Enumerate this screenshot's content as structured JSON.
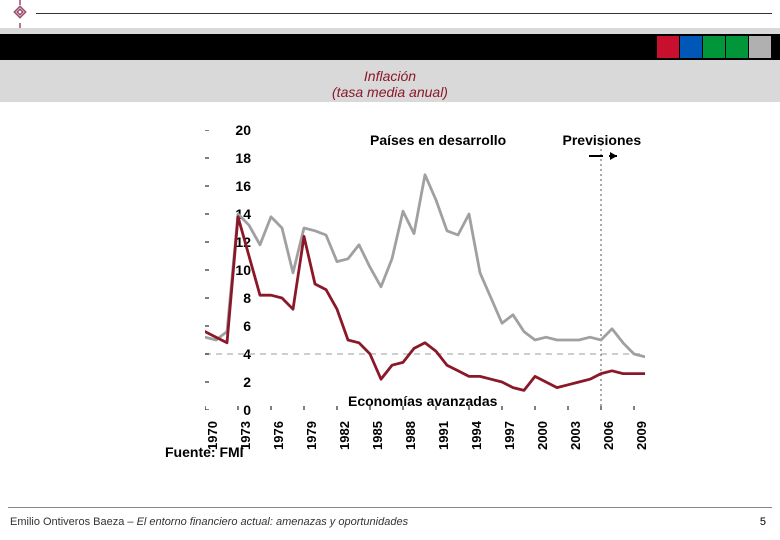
{
  "header": {
    "squares": [
      "#c8102e",
      "#0057b8",
      "#009639",
      "#009639",
      "#b0b0b0"
    ]
  },
  "title": {
    "line1": "Inflación",
    "line2": "(tasa media anual)",
    "color": "#8a1829",
    "fontsize": 14
  },
  "chart": {
    "type": "line",
    "background": "#ffffff",
    "ylim": [
      0,
      20
    ],
    "ytick_step": 2,
    "xlabels": [
      "1970",
      "1973",
      "1976",
      "1979",
      "1982",
      "1985",
      "1988",
      "1991",
      "1994",
      "1997",
      "2000",
      "2003",
      "2006",
      "2009"
    ],
    "xlim": [
      1970,
      2010
    ],
    "fontsize": 14,
    "series": [
      {
        "name": "Países en desarrollo",
        "color": "#a0a0a0",
        "width": 2.8,
        "points": [
          [
            1970,
            5.2
          ],
          [
            1971,
            5.0
          ],
          [
            1972,
            5.6
          ],
          [
            1973,
            14.0
          ],
          [
            1974,
            13.2
          ],
          [
            1975,
            11.8
          ],
          [
            1976,
            13.8
          ],
          [
            1977,
            13.0
          ],
          [
            1978,
            9.8
          ],
          [
            1979,
            13.0
          ],
          [
            1980,
            12.8
          ],
          [
            1981,
            12.5
          ],
          [
            1982,
            10.6
          ],
          [
            1983,
            10.8
          ],
          [
            1984,
            11.8
          ],
          [
            1985,
            10.2
          ],
          [
            1986,
            8.8
          ],
          [
            1987,
            10.8
          ],
          [
            1988,
            14.2
          ],
          [
            1989,
            12.6
          ],
          [
            1990,
            16.8
          ],
          [
            1991,
            15.0
          ],
          [
            1992,
            12.8
          ],
          [
            1993,
            12.5
          ],
          [
            1994,
            14.0
          ],
          [
            1995,
            9.8
          ],
          [
            1996,
            8.0
          ],
          [
            1997,
            6.2
          ],
          [
            1998,
            6.8
          ],
          [
            1999,
            5.6
          ],
          [
            2000,
            5.0
          ],
          [
            2001,
            5.2
          ],
          [
            2002,
            5.0
          ],
          [
            2003,
            5.0
          ],
          [
            2004,
            5.0
          ],
          [
            2005,
            5.2
          ],
          [
            2006,
            5.0
          ],
          [
            2007,
            5.8
          ],
          [
            2008,
            4.8
          ],
          [
            2009,
            4.0
          ],
          [
            2010,
            3.8
          ]
        ]
      },
      {
        "name": "Economías avanzadas",
        "color": "#8a1829",
        "width": 2.8,
        "points": [
          [
            1970,
            5.6
          ],
          [
            1971,
            5.2
          ],
          [
            1972,
            4.8
          ],
          [
            1973,
            13.8
          ],
          [
            1974,
            11.0
          ],
          [
            1975,
            8.2
          ],
          [
            1976,
            8.2
          ],
          [
            1977,
            8.0
          ],
          [
            1978,
            7.2
          ],
          [
            1979,
            12.4
          ],
          [
            1980,
            9.0
          ],
          [
            1981,
            8.6
          ],
          [
            1982,
            7.2
          ],
          [
            1983,
            5.0
          ],
          [
            1984,
            4.8
          ],
          [
            1985,
            4.0
          ],
          [
            1986,
            2.2
          ],
          [
            1987,
            3.2
          ],
          [
            1988,
            3.4
          ],
          [
            1989,
            4.4
          ],
          [
            1990,
            4.8
          ],
          [
            1991,
            4.2
          ],
          [
            1992,
            3.2
          ],
          [
            1993,
            2.8
          ],
          [
            1994,
            2.4
          ],
          [
            1995,
            2.4
          ],
          [
            1996,
            2.2
          ],
          [
            1997,
            2.0
          ],
          [
            1998,
            1.6
          ],
          [
            1999,
            1.4
          ],
          [
            2000,
            2.4
          ],
          [
            2001,
            2.0
          ],
          [
            2002,
            1.6
          ],
          [
            2003,
            1.8
          ],
          [
            2004,
            2.0
          ],
          [
            2005,
            2.2
          ],
          [
            2006,
            2.6
          ],
          [
            2007,
            2.8
          ],
          [
            2008,
            2.6
          ],
          [
            2009,
            2.6
          ],
          [
            2010,
            2.6
          ]
        ]
      }
    ],
    "annotations": {
      "dev_label": "Países en desarrollo",
      "adv_label": "Economías avanzadas",
      "forecast_label": "Previsiones",
      "forecast_x": 2006,
      "dashed_y": 4,
      "dashed_color": "#bdbdbd"
    },
    "source": "Fuente: FMI"
  },
  "footer": {
    "author": "Emilio Ontiveros Baeza – ",
    "title_italic": "El entorno financiero actual: amenazas y oportunidades",
    "page": "5"
  }
}
